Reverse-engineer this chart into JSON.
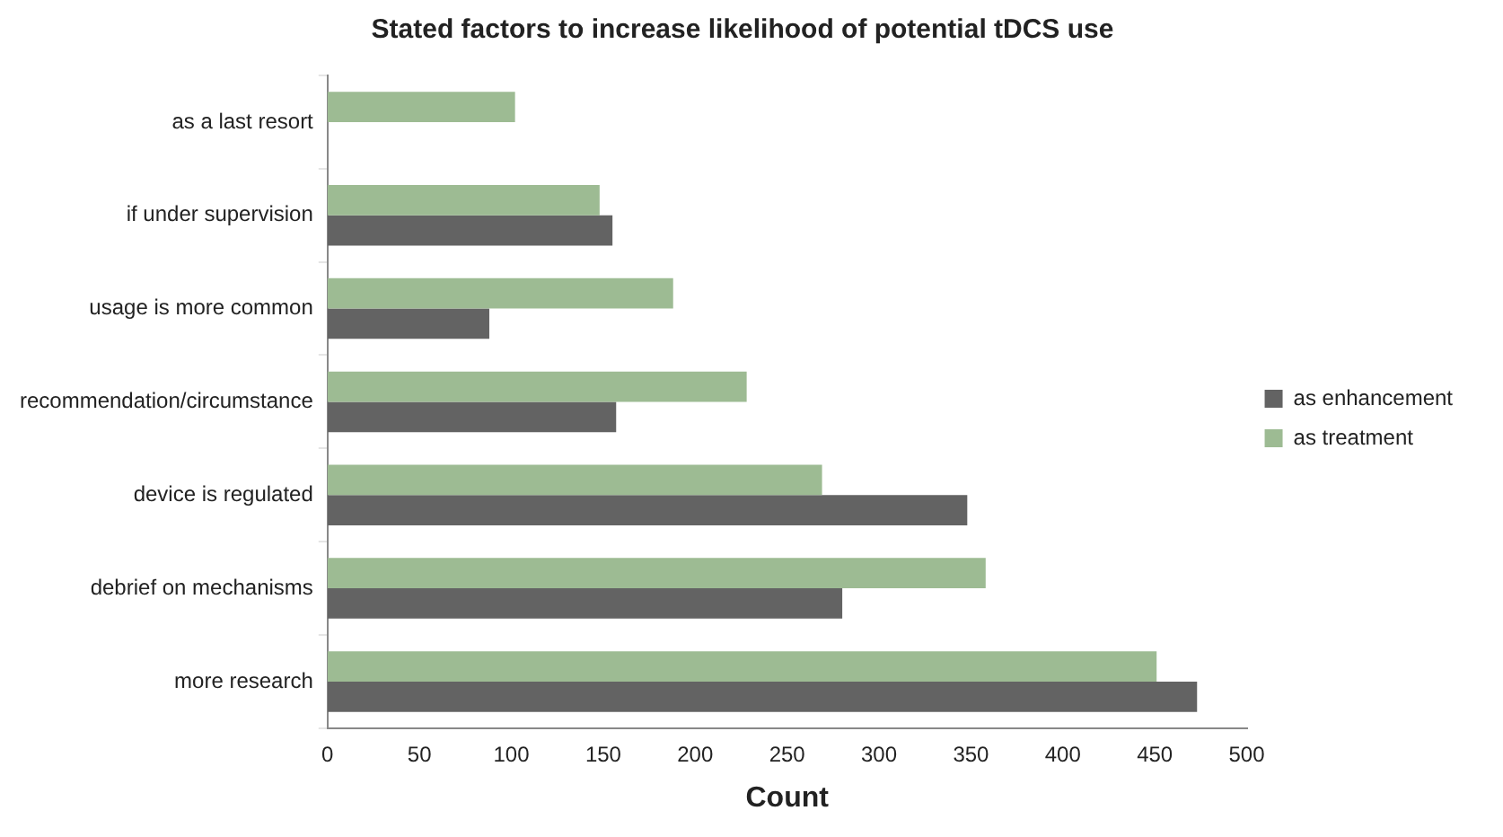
{
  "chart_data": {
    "type": "bar",
    "orientation": "horizontal",
    "title": "Stated factors to increase likelihood of potential tDCS use",
    "xlabel": "Count",
    "categories": [
      "as a last resort",
      "if under supervision",
      "usage is more common",
      "recommendation/circumstance",
      "device is regulated",
      "debrief on mechanisms",
      "more research"
    ],
    "series": [
      {
        "name": "as treatment",
        "color": "#9dbb93",
        "values": [
          102,
          148,
          188,
          228,
          269,
          358,
          451
        ]
      },
      {
        "name": "as enhancement",
        "color": "#636363",
        "values": [
          null,
          155,
          88,
          157,
          348,
          280,
          473
        ]
      }
    ],
    "xlim": [
      0,
      500
    ],
    "xticks": [
      0,
      50,
      100,
      150,
      200,
      250,
      300,
      350,
      400,
      450,
      500
    ],
    "grid": false,
    "legend": "right"
  }
}
